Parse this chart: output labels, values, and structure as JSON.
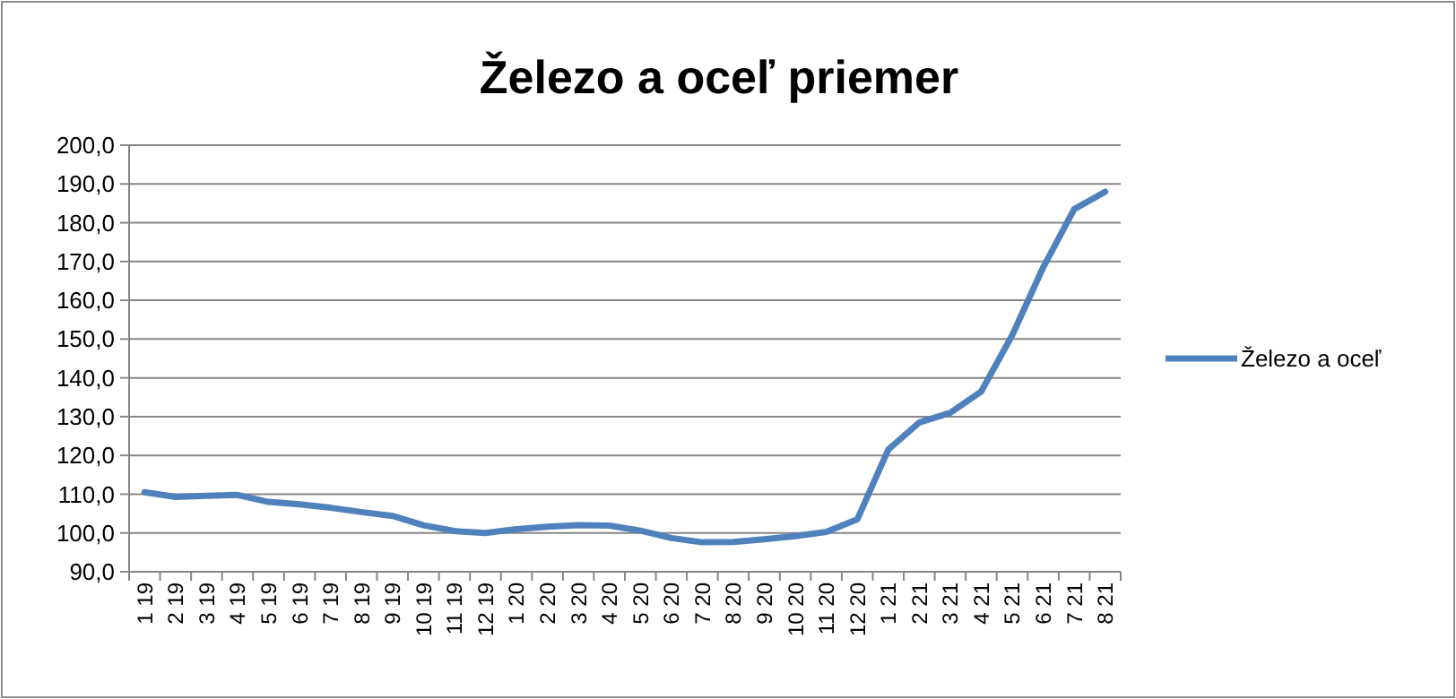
{
  "chart_data": {
    "type": "line",
    "title": "Železo a oceľ priemer",
    "categories": [
      "1 19",
      "2 19",
      "3 19",
      "4 19",
      "5 19",
      "6 19",
      "7 19",
      "8 19",
      "9 19",
      "10 19",
      "11 19",
      "12 19",
      "1 20",
      "2 20",
      "3 20",
      "4 20",
      "5 20",
      "6 20",
      "7 20",
      "8 20",
      "9 20",
      "10 20",
      "11 20",
      "12 20",
      "1 21",
      "2 21",
      "3 21",
      "4 21",
      "5 21",
      "6 21",
      "7 21",
      "8 21"
    ],
    "series": [
      {
        "name": "Železo a oceľ",
        "color": "#4f81bd",
        "values": [
          110.5,
          109.3,
          109.6,
          109.8,
          108,
          107.4,
          106.5,
          105.4,
          104.4,
          102,
          100.5,
          100,
          101,
          101.6,
          102,
          101.9,
          100.6,
          98.7,
          97.6,
          97.7,
          98.4,
          99.2,
          100.3,
          103.5,
          121.5,
          128.5,
          131,
          136.5,
          151,
          168.5,
          183.5,
          188
        ]
      }
    ],
    "ylim": [
      90,
      200
    ],
    "yticks": [
      {
        "value": 90,
        "label": "90,0"
      },
      {
        "value": 100,
        "label": "100,0"
      },
      {
        "value": 110,
        "label": "110,0"
      },
      {
        "value": 120,
        "label": "120,0"
      },
      {
        "value": 130,
        "label": "130,0"
      },
      {
        "value": 140,
        "label": "140,0"
      },
      {
        "value": 150,
        "label": "150,0"
      },
      {
        "value": 160,
        "label": "160,0"
      },
      {
        "value": 170,
        "label": "170,0"
      },
      {
        "value": 180,
        "label": "180,0"
      },
      {
        "value": 190,
        "label": "190,0"
      },
      {
        "value": 200,
        "label": "200,0"
      }
    ],
    "grid": "y",
    "legend": "right",
    "marker": "none",
    "line_style": "solid"
  }
}
